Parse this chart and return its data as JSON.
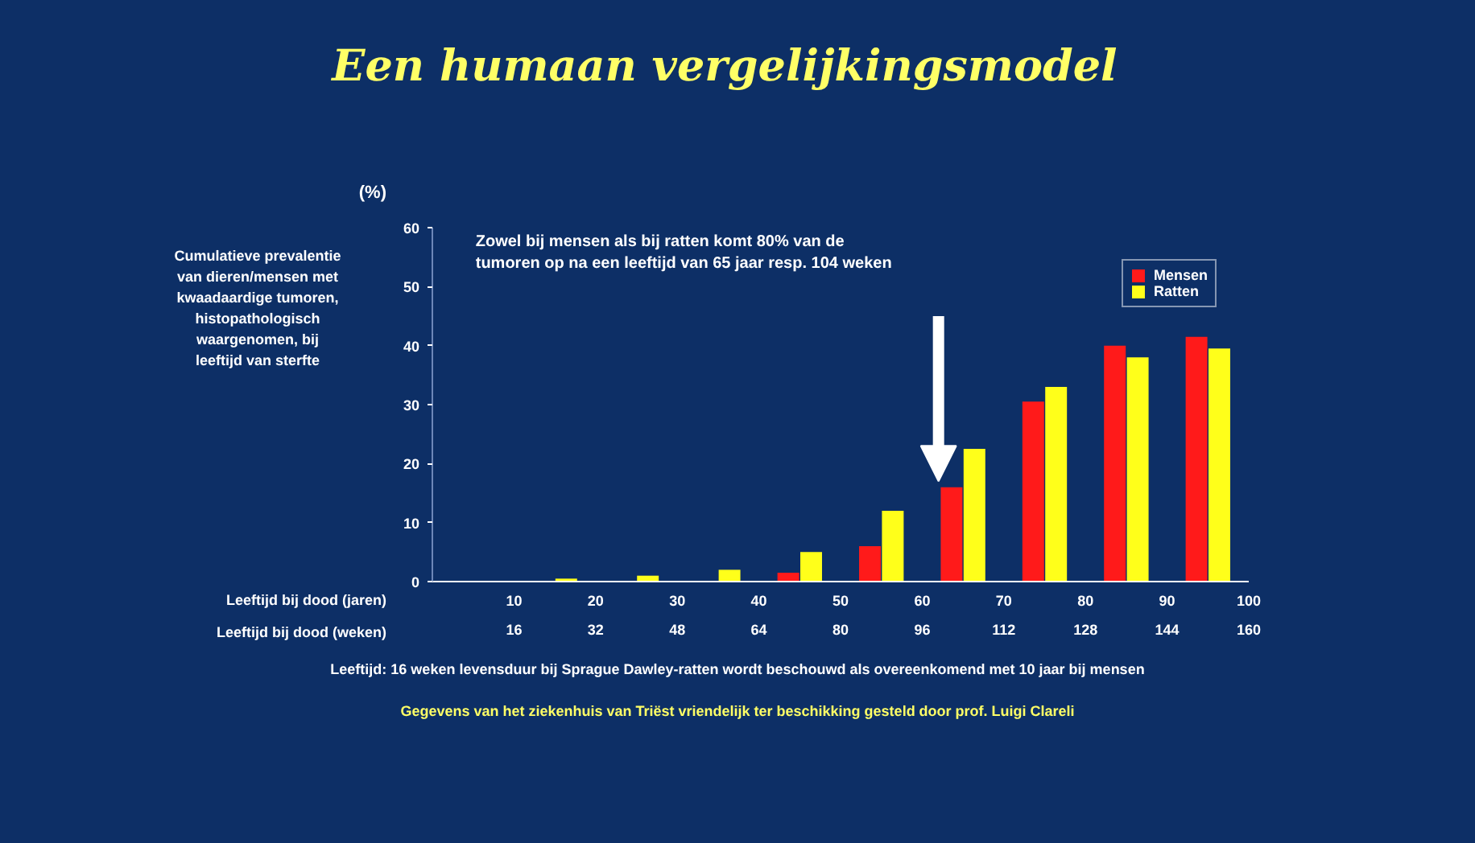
{
  "chart_data": {
    "type": "bar",
    "title": "Een humaan vergelijkingsmodel",
    "ylabel": "(%)",
    "xlabel": "Leeftijd bij dood (jaren)",
    "x2label": "Leeftijd bij dood (weken)",
    "x": [
      15,
      25,
      35,
      45,
      55,
      65,
      75,
      85,
      95
    ],
    "series": [
      {
        "name": "Mensen",
        "color": "#ff1a1a",
        "values": [
          0,
          0,
          0,
          1.5,
          6,
          16,
          30.5,
          40,
          41.5
        ]
      },
      {
        "name": "Ratten",
        "color": "#ffff1a",
        "values": [
          0.5,
          1,
          2,
          5,
          12,
          22.5,
          33,
          38,
          39.5
        ]
      }
    ],
    "xlim": [
      0,
      100
    ],
    "xticks": [
      10,
      20,
      30,
      40,
      50,
      60,
      70,
      80,
      90,
      100
    ],
    "x2lim": [
      0,
      160
    ],
    "x2ticks": [
      16,
      32,
      48,
      64,
      80,
      96,
      112,
      128,
      144,
      160
    ],
    "ylim": [
      0,
      60
    ],
    "yticks": [
      0,
      10,
      20,
      30,
      40,
      50,
      60
    ],
    "legend": "top right",
    "grid": false,
    "annotations": [
      "Zowel bij mensen als bij ratten komt 80% van de\ntumoren op na een leeftijd van 65 jaar resp. 104 weken",
      "Cumulatieve prevalentie\nvan dieren/mensen met\nkwaadaardige tumoren,\nhistopathologisch\nwaargenomen, bij\nleeftijd van sterfte",
      "Leeftijd: 16 weken levensduur bij Sprague Dawley-ratten wordt beschouwd als overeenkomend met 10 jaar bij mensen",
      "Gegevens van het ziekenhuis van Triëst vriendelijk ter beschikking gesteld door prof. Luigi Clareli"
    ]
  }
}
